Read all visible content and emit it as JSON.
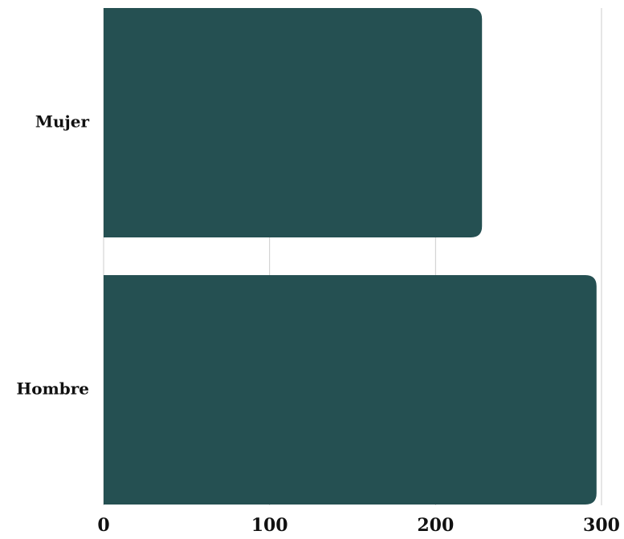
{
  "chart_data": {
    "type": "bar",
    "orientation": "horizontal",
    "categories": [
      "Mujer",
      "Hombre"
    ],
    "values": [
      228,
      297
    ],
    "xlim": [
      0,
      300
    ],
    "xticks": [
      "0",
      "100",
      "200",
      "300"
    ],
    "title": "",
    "xlabel": "",
    "ylabel": "",
    "grid": "vertical",
    "bar_color": "#255052",
    "grid_color": "#cccccc"
  }
}
